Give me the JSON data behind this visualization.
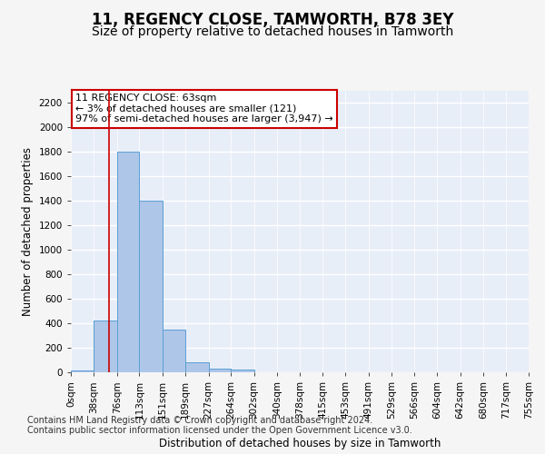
{
  "title": "11, REGENCY CLOSE, TAMWORTH, B78 3EY",
  "subtitle": "Size of property relative to detached houses in Tamworth",
  "xlabel": "Distribution of detached houses by size in Tamworth",
  "ylabel": "Number of detached properties",
  "bin_edges": [
    0,
    38,
    76,
    113,
    151,
    189,
    227,
    264,
    302,
    340,
    378,
    415,
    453,
    491,
    529,
    566,
    604,
    642,
    680,
    717,
    755
  ],
  "bin_labels": [
    "0sqm",
    "38sqm",
    "76sqm",
    "113sqm",
    "151sqm",
    "189sqm",
    "227sqm",
    "264sqm",
    "302sqm",
    "340sqm",
    "378sqm",
    "415sqm",
    "453sqm",
    "491sqm",
    "529sqm",
    "566sqm",
    "604sqm",
    "642sqm",
    "680sqm",
    "717sqm",
    "755sqm"
  ],
  "bar_values": [
    15,
    420,
    1800,
    1400,
    350,
    80,
    30,
    20,
    0,
    0,
    0,
    0,
    0,
    0,
    0,
    0,
    0,
    0,
    0,
    0
  ],
  "bar_color": "#aec6e8",
  "bar_edge_color": "#5a9fd4",
  "property_line_x": 63,
  "ylim": [
    0,
    2300
  ],
  "yticks": [
    0,
    200,
    400,
    600,
    800,
    1000,
    1200,
    1400,
    1600,
    1800,
    2000,
    2200
  ],
  "annotation_text": "11 REGENCY CLOSE: 63sqm\n← 3% of detached houses are smaller (121)\n97% of semi-detached houses are larger (3,947) →",
  "annotation_box_color": "#ffffff",
  "annotation_box_edge": "#cc0000",
  "footer_line1": "Contains HM Land Registry data © Crown copyright and database right 2024.",
  "footer_line2": "Contains public sector information licensed under the Open Government Licence v3.0.",
  "bg_color": "#e8eef8",
  "grid_color": "#ffffff",
  "fig_bg_color": "#f5f5f5",
  "title_fontsize": 12,
  "subtitle_fontsize": 10,
  "axis_label_fontsize": 8.5,
  "tick_fontsize": 7.5,
  "annotation_fontsize": 8,
  "footer_fontsize": 7
}
